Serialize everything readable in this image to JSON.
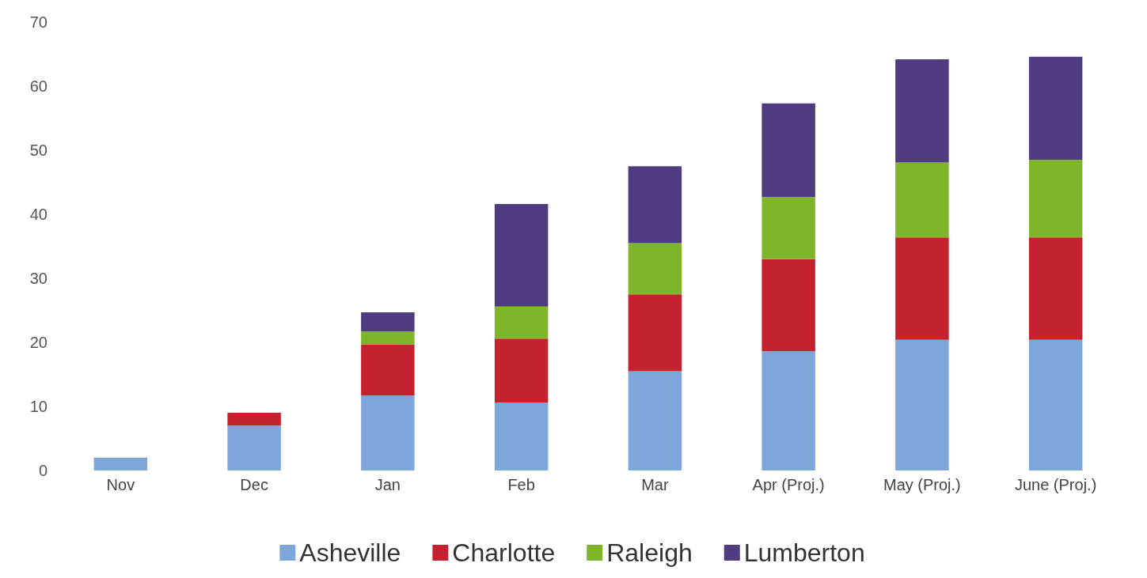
{
  "chart_data": {
    "type": "bar",
    "stacked": true,
    "categories": [
      "Nov",
      "Dec",
      "Jan",
      "Feb",
      "Mar",
      "Apr (Proj.)",
      "May (Proj.)",
      "June (Proj.)"
    ],
    "series": [
      {
        "name": "Asheville",
        "color": "#7ea6da",
        "values": [
          2,
          7,
          11.7,
          10.6,
          15.5,
          18.6,
          20.4,
          20.4
        ]
      },
      {
        "name": "Charlotte",
        "color": "#c4222f",
        "values": [
          0,
          2,
          8,
          10,
          12,
          14.4,
          16,
          16
        ]
      },
      {
        "name": "Raleigh",
        "color": "#7fb52b",
        "values": [
          0,
          0,
          2,
          5,
          8,
          9.7,
          11.7,
          12.1
        ]
      },
      {
        "name": "Lumberton",
        "color": "#4e3b80",
        "values": [
          0,
          0,
          3,
          16,
          12,
          14.6,
          16.1,
          16.1
        ]
      }
    ],
    "ylim": [
      0,
      70
    ],
    "yticks": [
      0,
      10,
      20,
      30,
      40,
      50,
      60,
      70
    ],
    "grid": false,
    "legend": "bottom"
  }
}
